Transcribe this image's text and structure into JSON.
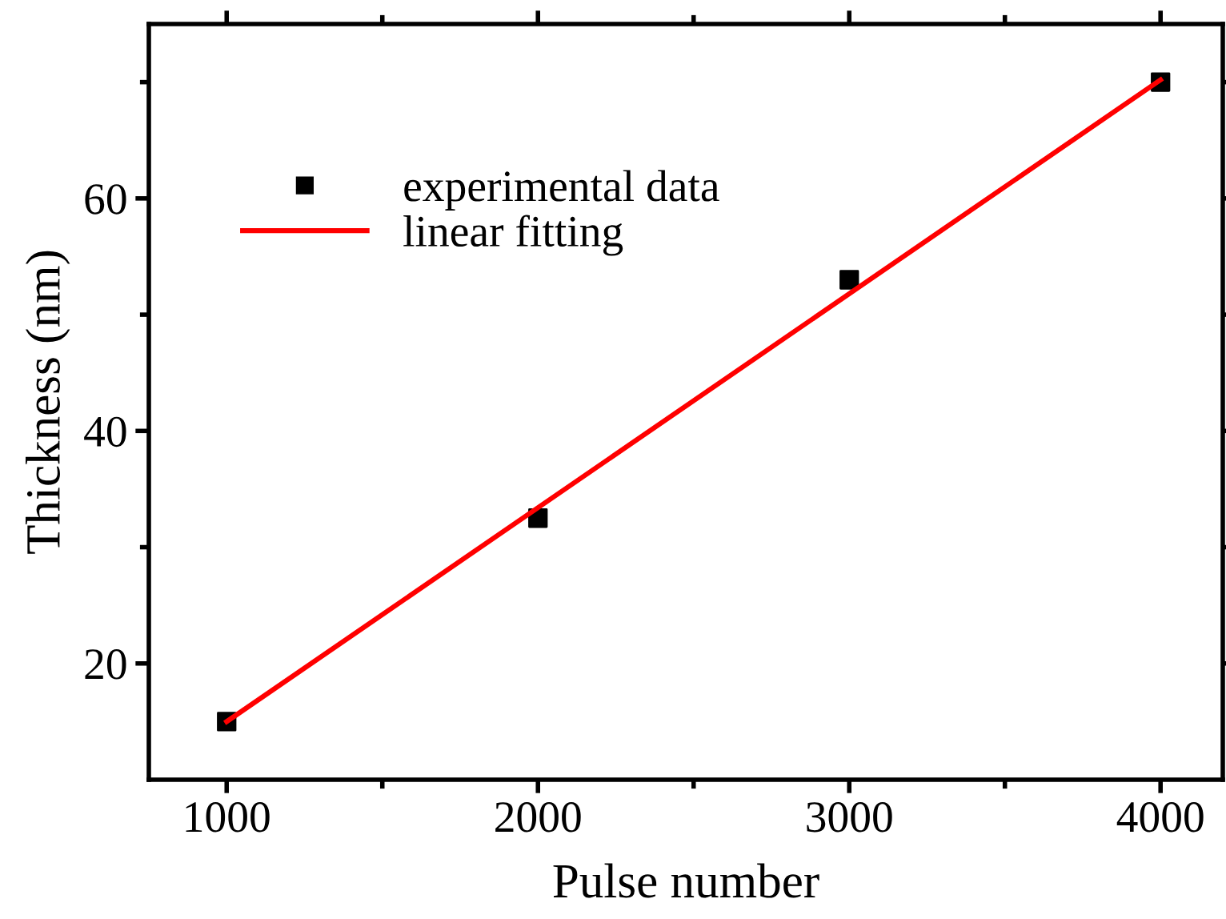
{
  "chart_data": {
    "type": "scatter",
    "xlabel": "Pulse number",
    "ylabel": "Thickness (nm)",
    "series": [
      {
        "name": "experimental data",
        "color": "#000000",
        "marker": "square",
        "x": [
          1000,
          2000,
          3000,
          4000
        ],
        "values": [
          15,
          32.5,
          53,
          70
        ]
      },
      {
        "name": "linear fitting",
        "type": "line",
        "color": "#ff0000",
        "marker": "none",
        "line_style": "solid",
        "x": [
          1000,
          4000
        ],
        "values": [
          15,
          70.2
        ]
      }
    ],
    "xlim": [
      750,
      4200
    ],
    "ylim": [
      10,
      75
    ],
    "xticks": [
      1000,
      {
        "value": 1500,
        "label": null
      },
      2000,
      {
        "value": 2500,
        "label": null
      },
      3000,
      {
        "value": 3500,
        "label": null
      },
      4000
    ],
    "yticks": [
      20,
      {
        "value": 30,
        "label": null
      },
      40,
      {
        "value": 50,
        "label": null
      },
      60,
      {
        "value": 70,
        "label": null
      }
    ],
    "grid": false,
    "legend": "top left"
  }
}
